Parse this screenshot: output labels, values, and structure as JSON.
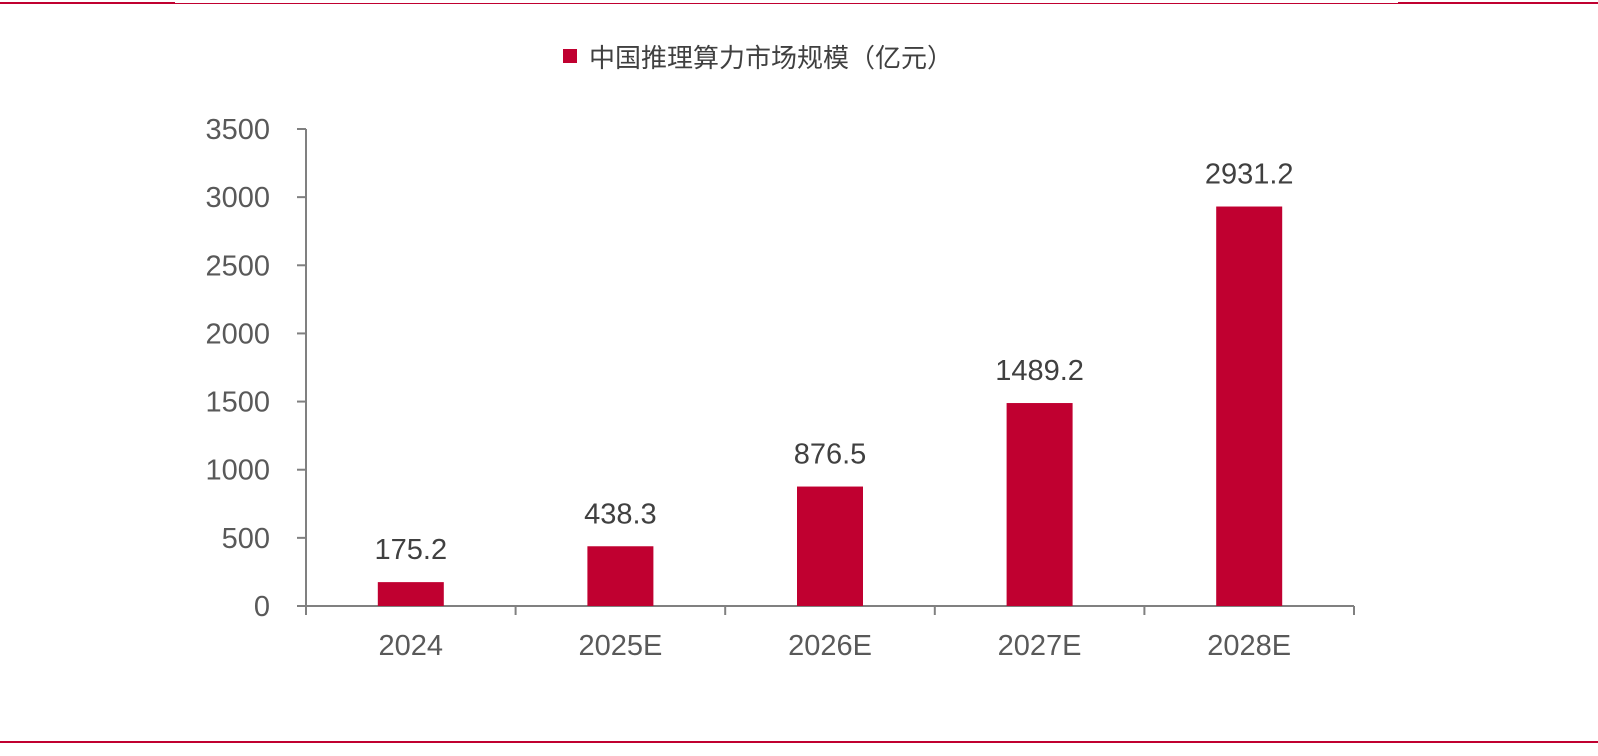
{
  "colors": {
    "bar": "#c00030",
    "rule": "#c00030",
    "axis": "#808080",
    "tick_text": "#595959",
    "data_label": "#404040"
  },
  "chart_data": {
    "type": "bar",
    "categories": [
      "2024",
      "2025E",
      "2026E",
      "2027E",
      "2028E"
    ],
    "series": [
      {
        "name": "中国推理算力市场规模（亿元）",
        "values": [
          175.2,
          438.3,
          876.5,
          1489.2,
          2931.2
        ]
      }
    ],
    "data_labels": [
      "175.2",
      "438.3",
      "876.5",
      "1489.2",
      "2931.2"
    ],
    "ylim": [
      0,
      3500
    ],
    "yticks": [
      0,
      500,
      1000,
      1500,
      2000,
      2500,
      3000,
      3500
    ],
    "legend_position": "top-center",
    "grid": false
  }
}
